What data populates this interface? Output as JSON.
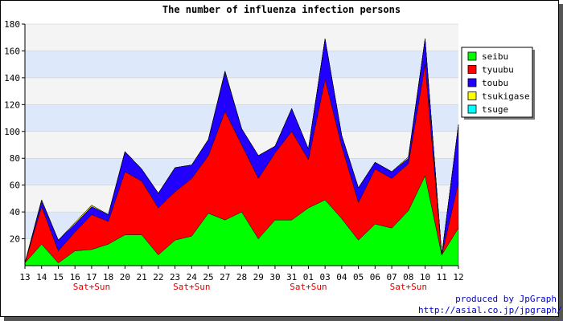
{
  "chart_data": {
    "type": "area",
    "stacked": true,
    "title": "The number of influenza infection persons",
    "x": [
      "13",
      "14",
      "15",
      "16",
      "17",
      "18",
      "20",
      "21",
      "22",
      "23",
      "24",
      "25",
      "27",
      "28",
      "29",
      "30",
      "31",
      "01",
      "03",
      "04",
      "05",
      "06",
      "07",
      "08",
      "10",
      "11",
      "12"
    ],
    "weekend_label": "Sat+Sun",
    "weekend_marks": [
      "17",
      "24",
      "01",
      "08"
    ],
    "ylim": [
      0,
      180
    ],
    "yticks": [
      20,
      40,
      60,
      80,
      100,
      120,
      140,
      160,
      180
    ],
    "grid": true,
    "legend_position": "right",
    "series": [
      {
        "name": "seibu",
        "color": "#00ff00",
        "values": [
          2,
          16,
          2,
          11,
          12,
          16,
          23,
          23,
          8,
          19,
          22,
          39,
          34,
          40,
          20,
          34,
          34,
          43,
          49,
          35,
          19,
          31,
          28,
          41,
          67,
          8,
          28
        ]
      },
      {
        "name": "tyuubu",
        "color": "#ff0000",
        "values": [
          0,
          28,
          9,
          14,
          26,
          17,
          47,
          40,
          35,
          36,
          43,
          43,
          81,
          50,
          45,
          50,
          66,
          36,
          90,
          54,
          28,
          41,
          37,
          35,
          83,
          0,
          34
        ]
      },
      {
        "name": "toubu",
        "color": "#2200ff",
        "values": [
          0,
          4,
          8,
          6,
          6,
          5,
          15,
          9,
          11,
          18,
          10,
          12,
          29,
          12,
          17,
          5,
          17,
          8,
          30,
          8,
          11,
          5,
          5,
          4,
          19,
          0,
          43
        ]
      },
      {
        "name": "tsukigase",
        "color": "#ffff00",
        "values": [
          0,
          1,
          0,
          1,
          1,
          0,
          0,
          0,
          0,
          0,
          0,
          0,
          1,
          0,
          0,
          0,
          0,
          0,
          0,
          0,
          0,
          0,
          0,
          1,
          0,
          0,
          0
        ]
      },
      {
        "name": "tsuge",
        "color": "#00ffff",
        "values": [
          0,
          0,
          0,
          0,
          0,
          0,
          0,
          0,
          0,
          0,
          0,
          0,
          0,
          0,
          0,
          0,
          0,
          0,
          0,
          0,
          0,
          0,
          0,
          0,
          0,
          0,
          0
        ]
      }
    ]
  },
  "footer": {
    "credit_line1": "produced by JpGraph",
    "credit_line2": "http://asial.co.jp/jpgraph/"
  }
}
